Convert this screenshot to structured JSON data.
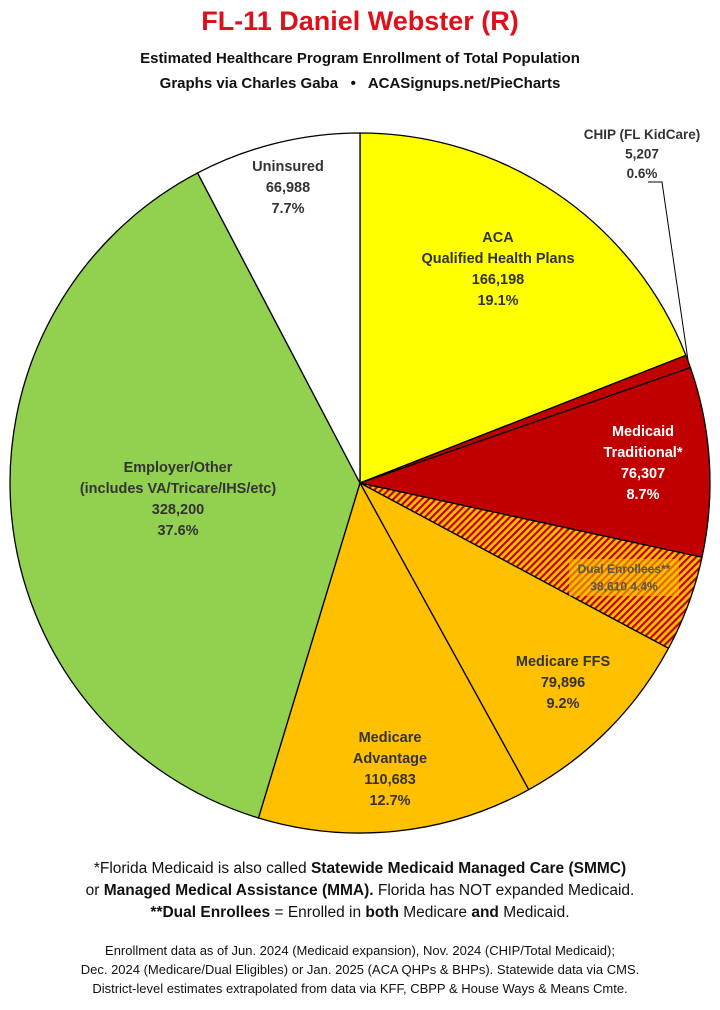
{
  "header": {
    "title": "FL-11 Daniel Webster (R)",
    "subtitle": "Estimated Healthcare Program Enrollment of Total Population",
    "credit_left": "Graphs via Charles Gaba",
    "credit_bullet": "•",
    "credit_right": "ACASignups.net/PieCharts"
  },
  "chart_data": {
    "type": "pie",
    "title": "FL-11 Daniel Webster (R)",
    "slices": [
      {
        "label_lines": [
          "ACA",
          "Qualified Health Plans"
        ],
        "value": 166198,
        "value_text": "166,198",
        "percent": "19.1%",
        "color": "#ffff00",
        "label_color": "#333333"
      },
      {
        "label_lines": [
          "CHIP (FL KidCare)"
        ],
        "value": 5207,
        "value_text": "5,207",
        "percent": "0.6%",
        "color": "#c00000",
        "label_color": "#333333"
      },
      {
        "label_lines": [
          "Medicaid",
          "Traditional*"
        ],
        "value": 76307,
        "value_text": "76,307",
        "percent": "8.7%",
        "color": "#c00000",
        "label_color": "#ffffff"
      },
      {
        "label_lines": [
          "Dual Enrollees**"
        ],
        "value": 38610,
        "value_text": "38,610",
        "percent": "4.4%",
        "color": "#c00000",
        "hatch": "#ffc000",
        "label_color": "#555555"
      },
      {
        "label_lines": [
          "Medicare FFS"
        ],
        "value": 79896,
        "value_text": "79,896",
        "percent": "9.2%",
        "color": "#ffc000",
        "label_color": "#333333"
      },
      {
        "label_lines": [
          "Medicare",
          "Advantage"
        ],
        "value": 110683,
        "value_text": "110,683",
        "percent": "12.7%",
        "color": "#ffc000",
        "label_color": "#333333"
      },
      {
        "label_lines": [
          "Employer/Other",
          "(includes VA/Tricare/IHS/etc)"
        ],
        "value": 328200,
        "value_text": "328,200",
        "percent": "37.6%",
        "color": "#92d050",
        "label_color": "#333333"
      },
      {
        "label_lines": [
          "Uninsured"
        ],
        "value": 66988,
        "value_text": "66,988",
        "percent": "7.7%",
        "color": "#ffffff",
        "label_color": "#333333"
      }
    ]
  },
  "footnotes": {
    "line1_a": "*Florida Medicaid is also called ",
    "line1_b": "Statewide Medicaid Managed Care (SMMC)",
    "line2_a": "or ",
    "line2_b": "Managed Medical Assistance (MMA).",
    "line2_c": " Florida has NOT expanded Medicaid.",
    "line3_a": "**Dual Enrollees",
    "line3_b": " = Enrolled in ",
    "line3_c": "both",
    "line3_d": " Medicare ",
    "line3_e": "and",
    "line3_f": " Medicaid."
  },
  "sources": {
    "line1": "Enrollment data as of Jun. 2024 (Medicaid expansion), Nov. 2024 (CHIP/Total Medicaid);",
    "line2": "Dec. 2024 (Medicare/Dual Eligibles) or Jan. 2025 (ACA QHPs & BHPs). Statewide data via CMS.",
    "line3": "District-level estimates extrapolated from data via KFF, CBPP & House Ways & Means Cmte."
  }
}
